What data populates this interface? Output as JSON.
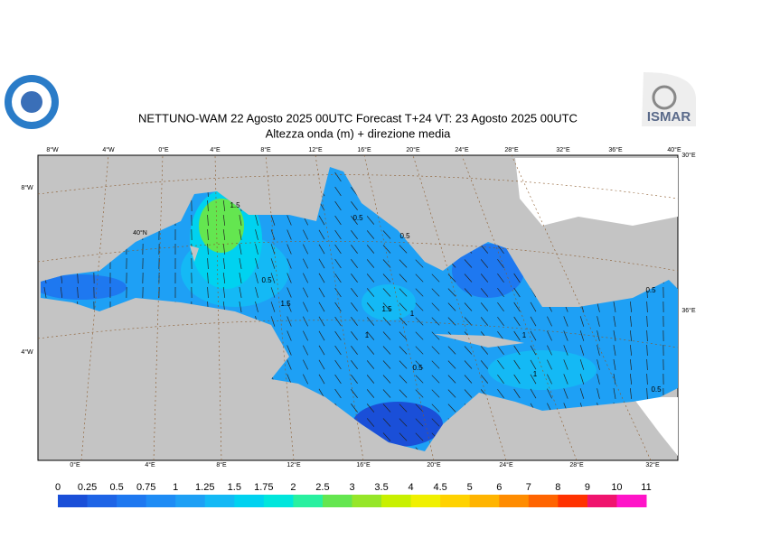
{
  "header": {
    "title": "NETTUNO-WAM  22   Agosto  2025 00UTC Forecast T+24 VT: 23   Agosto  2025 00UTC",
    "subtitle": "Altezza onda (m) + direzione media",
    "logo_right": "ISMAR"
  },
  "map": {
    "top_labels": [
      "8°W",
      "4°W",
      "0°E",
      "4°E",
      "8°E",
      "12°E",
      "16°E",
      "20°E",
      "24°E",
      "28°E",
      "32°E",
      "36°E",
      "40°E"
    ],
    "bottom_labels": [
      "0°E",
      "4°E",
      "8°E",
      "12°E",
      "16°E",
      "20°E",
      "24°E",
      "28°E",
      "32°E"
    ],
    "left_labels": [
      "8°W",
      "4°W"
    ],
    "inner_labels": [
      "40°N"
    ],
    "right_labels": [
      "30°E",
      "36°E"
    ],
    "contour_labels": [
      1.5,
      0.5,
      0.5,
      0.5,
      1.5,
      1.5,
      1,
      1,
      1,
      0.5,
      1,
      0.5,
      0.5
    ]
  },
  "colorbar": {
    "ticks": [
      0,
      0.25,
      0.5,
      0.75,
      1,
      1.25,
      1.5,
      1.75,
      2,
      2.5,
      3,
      3.5,
      4,
      4.5,
      5,
      6,
      7,
      8,
      9,
      10,
      11
    ],
    "colors": [
      "#1a4fd8",
      "#1e64e6",
      "#1e78f0",
      "#1e8cf5",
      "#1ea0f5",
      "#14b9f5",
      "#00d2f0",
      "#00e6dc",
      "#28f0a0",
      "#64e650",
      "#96e628",
      "#c8f000",
      "#f0f000",
      "#ffd200",
      "#ffb400",
      "#ff8c00",
      "#ff6400",
      "#ff3200",
      "#f0146e",
      "#ff14c8"
    ]
  }
}
